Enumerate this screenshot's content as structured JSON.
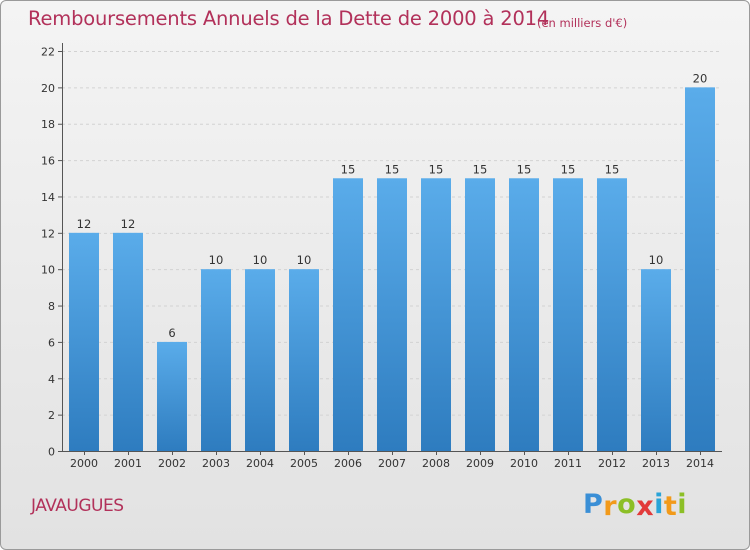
{
  "header": {
    "title": "Remboursements Annuels de la Dette de 2000 à 2014",
    "unit_note": "(en milliers d'€)"
  },
  "footer": {
    "commune": "JAVAUGUES",
    "logo_letters": [
      "P",
      "r",
      "o",
      "x",
      "i",
      "t",
      "i"
    ],
    "logo_colors": [
      "#3a8fd6",
      "#f29a1a",
      "#8cbf26",
      "#e23a3a",
      "#2aa4d8",
      "#f29a1a",
      "#8cbf26"
    ]
  },
  "colors": {
    "title": "#b2315a",
    "bar_top": "#5aacea",
    "bar_bottom": "#2e7cbf",
    "axis": "#555555",
    "grid": "#d2d2d2"
  },
  "chart_data": {
    "type": "bar",
    "title": "Remboursements Annuels de la Dette de 2000 à 2014",
    "subtitle": "(en milliers d'€)",
    "categories": [
      "2000",
      "2001",
      "2002",
      "2003",
      "2004",
      "2005",
      "2006",
      "2007",
      "2008",
      "2009",
      "2010",
      "2011",
      "2012",
      "2013",
      "2014"
    ],
    "values": [
      12,
      12,
      6,
      10,
      10,
      10,
      15,
      15,
      15,
      15,
      15,
      15,
      15,
      10,
      20
    ],
    "data_labels": [
      "12",
      "12",
      "6",
      "10",
      "10",
      "10",
      "15",
      "15",
      "15",
      "15",
      "15",
      "15",
      "15",
      "10",
      "20"
    ],
    "ylim": [
      0,
      22
    ],
    "yticks": [
      0,
      2,
      4,
      6,
      8,
      10,
      12,
      14,
      16,
      18,
      20,
      22
    ],
    "grid": "horizontal dashed",
    "legend": "none"
  }
}
